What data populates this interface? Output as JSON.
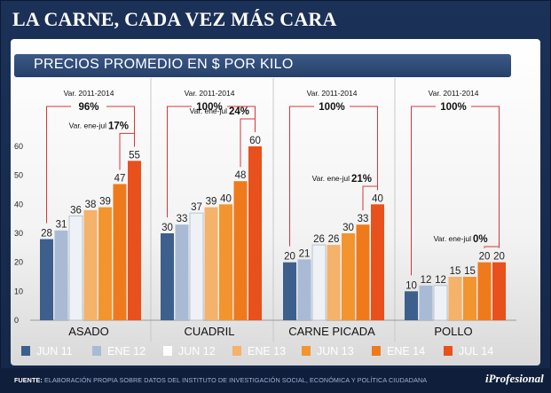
{
  "header": {
    "title": "LA CARNE, CADA VEZ MÁS CARA",
    "subtitle": "PRECIOS PROMEDIO EN $ POR KILO"
  },
  "footer": {
    "label": "FUENTE:",
    "text": "ELABORACIÓN PROPIA SOBRE DATOS DEL INSTITUTO DE INVESTIGACIÓN SOCIAL, ECONÓMICA Y POLÍTICA CIUDADANA",
    "logo": "iProfesional"
  },
  "chart_data": {
    "type": "bar",
    "title": "PRECIOS PROMEDIO EN $ POR KILO",
    "ylim": [
      0,
      60
    ],
    "yticks": [
      0,
      10,
      20,
      30,
      40,
      50,
      60
    ],
    "categories": [
      "ASADO",
      "CUADRIL",
      "CARNE PICADA",
      "POLLO"
    ],
    "series": [
      {
        "name": "JUN 11",
        "color": "#3d5f8c",
        "values": [
          28,
          30,
          20,
          10
        ]
      },
      {
        "name": "ENE 12",
        "color": "#a9bbd4",
        "values": [
          31,
          33,
          21,
          12
        ]
      },
      {
        "name": "JUN 12",
        "color": "#eef2f6",
        "values": [
          36,
          37,
          26,
          12
        ]
      },
      {
        "name": "ENE 13",
        "color": "#f4b26b",
        "values": [
          38,
          39,
          26,
          15
        ]
      },
      {
        "name": "JUN 13",
        "color": "#f2952f",
        "values": [
          39,
          40,
          30,
          15
        ]
      },
      {
        "name": "ENE 14",
        "color": "#ef7a1c",
        "values": [
          47,
          48,
          33,
          20
        ]
      },
      {
        "name": "JUL 14",
        "color": "#e8501c",
        "values": [
          55,
          60,
          40,
          20
        ]
      }
    ],
    "annotations": [
      {
        "category": "ASADO",
        "var_label": "Var. 2011-2014",
        "var_value": "96%",
        "ene_jul_label": "Var. ene-jul",
        "ene_jul_value": "17%"
      },
      {
        "category": "CUADRIL",
        "var_label": "Var. 2011-2014",
        "var_value": "100%",
        "ene_jul_label": "Var. ene-jul",
        "ene_jul_value": "24%"
      },
      {
        "category": "CARNE PICADA",
        "var_label": "Var. 2011-2014",
        "var_value": "100%",
        "ene_jul_label": "Var. ene-jul",
        "ene_jul_value": "21%"
      },
      {
        "category": "POLLO",
        "var_label": "Var. 2011-2014",
        "var_value": "100%",
        "ene_jul_label": "Var. ene-jul",
        "ene_jul_value": "0%"
      }
    ]
  }
}
